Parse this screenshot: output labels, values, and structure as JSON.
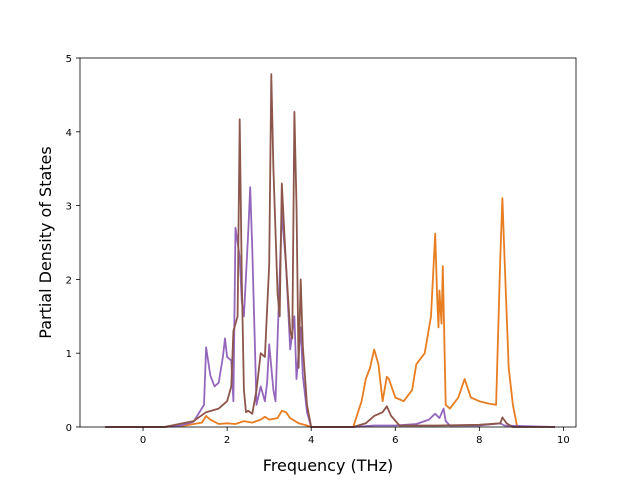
{
  "chart_data": {
    "type": "line",
    "title": "",
    "xlabel": "Frequency (THz)",
    "ylabel": "Partial Density of States",
    "xlim": [
      -1.5,
      10.3
    ],
    "ylim": [
      0,
      5
    ],
    "xticks": [
      0,
      2,
      4,
      6,
      8,
      10
    ],
    "yticks": [
      0,
      1,
      2,
      3,
      4,
      5
    ],
    "grid": false,
    "series": [
      {
        "color": "#e87d21",
        "points": [
          [
            -0.9,
            0
          ],
          [
            0.5,
            0
          ],
          [
            1.0,
            0.02
          ],
          [
            1.4,
            0.06
          ],
          [
            1.5,
            0.15
          ],
          [
            1.6,
            0.1
          ],
          [
            1.8,
            0.04
          ],
          [
            2.0,
            0.05
          ],
          [
            2.2,
            0.04
          ],
          [
            2.4,
            0.08
          ],
          [
            2.6,
            0.06
          ],
          [
            2.8,
            0.1
          ],
          [
            2.9,
            0.14
          ],
          [
            3.0,
            0.1
          ],
          [
            3.2,
            0.12
          ],
          [
            3.3,
            0.22
          ],
          [
            3.4,
            0.2
          ],
          [
            3.5,
            0.12
          ],
          [
            3.7,
            0.05
          ],
          [
            3.9,
            0.02
          ],
          [
            4.0,
            0
          ],
          [
            5.0,
            0
          ],
          [
            5.2,
            0.35
          ],
          [
            5.3,
            0.65
          ],
          [
            5.4,
            0.8
          ],
          [
            5.5,
            1.05
          ],
          [
            5.6,
            0.85
          ],
          [
            5.7,
            0.35
          ],
          [
            5.8,
            0.68
          ],
          [
            5.85,
            0.65
          ],
          [
            6.0,
            0.4
          ],
          [
            6.2,
            0.35
          ],
          [
            6.4,
            0.5
          ],
          [
            6.5,
            0.85
          ],
          [
            6.7,
            1.0
          ],
          [
            6.85,
            1.5
          ],
          [
            6.95,
            2.62
          ],
          [
            7.0,
            1.7
          ],
          [
            7.03,
            1.35
          ],
          [
            7.05,
            1.85
          ],
          [
            7.1,
            1.4
          ],
          [
            7.13,
            2.18
          ],
          [
            7.2,
            0.3
          ],
          [
            7.3,
            0.25
          ],
          [
            7.5,
            0.4
          ],
          [
            7.65,
            0.65
          ],
          [
            7.8,
            0.4
          ],
          [
            8.0,
            0.35
          ],
          [
            8.2,
            0.32
          ],
          [
            8.4,
            0.3
          ],
          [
            8.5,
            2.3
          ],
          [
            8.55,
            3.1
          ],
          [
            8.6,
            2.3
          ],
          [
            8.7,
            0.8
          ],
          [
            8.8,
            0.3
          ],
          [
            8.9,
            0
          ]
        ]
      },
      {
        "color": "#9467bd",
        "points": [
          [
            -0.9,
            0
          ],
          [
            0.5,
            0
          ],
          [
            0.9,
            0.02
          ],
          [
            1.2,
            0.07
          ],
          [
            1.45,
            0.3
          ],
          [
            1.5,
            1.08
          ],
          [
            1.6,
            0.7
          ],
          [
            1.7,
            0.55
          ],
          [
            1.8,
            0.6
          ],
          [
            1.9,
            0.95
          ],
          [
            1.95,
            1.2
          ],
          [
            2.0,
            0.95
          ],
          [
            2.1,
            0.9
          ],
          [
            2.15,
            0.35
          ],
          [
            2.2,
            2.7
          ],
          [
            2.3,
            2.3
          ],
          [
            2.35,
            1.7
          ],
          [
            2.4,
            1.5
          ],
          [
            2.5,
            2.6
          ],
          [
            2.55,
            3.25
          ],
          [
            2.6,
            2.4
          ],
          [
            2.7,
            0.3
          ],
          [
            2.8,
            0.55
          ],
          [
            2.9,
            0.35
          ],
          [
            2.95,
            0.6
          ],
          [
            3.0,
            1.12
          ],
          [
            3.1,
            0.5
          ],
          [
            3.15,
            0.35
          ],
          [
            3.3,
            2.9
          ],
          [
            3.4,
            2.2
          ],
          [
            3.5,
            1.05
          ],
          [
            3.6,
            1.5
          ],
          [
            3.65,
            0.65
          ],
          [
            3.75,
            1.35
          ],
          [
            3.8,
            0.7
          ],
          [
            3.9,
            0.2
          ],
          [
            4.0,
            0
          ],
          [
            5.0,
            0
          ],
          [
            5.5,
            0.02
          ],
          [
            6.0,
            0.02
          ],
          [
            6.5,
            0.04
          ],
          [
            6.8,
            0.1
          ],
          [
            6.95,
            0.18
          ],
          [
            7.05,
            0.12
          ],
          [
            7.15,
            0.25
          ],
          [
            7.2,
            0.08
          ],
          [
            7.3,
            0.02
          ],
          [
            8.0,
            0.02
          ],
          [
            8.5,
            0.05
          ],
          [
            8.6,
            0.02
          ],
          [
            9.8,
            0
          ]
        ]
      },
      {
        "color": "#8c564b",
        "points": [
          [
            -0.9,
            0
          ],
          [
            0.5,
            0
          ],
          [
            1.2,
            0.08
          ],
          [
            1.5,
            0.2
          ],
          [
            1.8,
            0.25
          ],
          [
            2.0,
            0.35
          ],
          [
            2.1,
            0.55
          ],
          [
            2.15,
            1.3
          ],
          [
            2.25,
            1.5
          ],
          [
            2.3,
            4.17
          ],
          [
            2.35,
            2.0
          ],
          [
            2.4,
            0.5
          ],
          [
            2.45,
            0.2
          ],
          [
            2.5,
            0.22
          ],
          [
            2.6,
            0.18
          ],
          [
            2.7,
            0.5
          ],
          [
            2.8,
            1.0
          ],
          [
            2.9,
            0.95
          ],
          [
            3.0,
            2.2
          ],
          [
            3.05,
            4.78
          ],
          [
            3.1,
            3.5
          ],
          [
            3.2,
            1.8
          ],
          [
            3.25,
            1.5
          ],
          [
            3.3,
            3.3
          ],
          [
            3.4,
            2.2
          ],
          [
            3.5,
            1.3
          ],
          [
            3.55,
            1.2
          ],
          [
            3.6,
            4.27
          ],
          [
            3.65,
            3.0
          ],
          [
            3.7,
            0.8
          ],
          [
            3.75,
            2.0
          ],
          [
            3.8,
            1.1
          ],
          [
            3.9,
            0.3
          ],
          [
            4.0,
            0
          ],
          [
            5.0,
            0
          ],
          [
            5.3,
            0.05
          ],
          [
            5.5,
            0.15
          ],
          [
            5.7,
            0.2
          ],
          [
            5.8,
            0.28
          ],
          [
            5.9,
            0.15
          ],
          [
            6.1,
            0.02
          ],
          [
            7.0,
            0.02
          ],
          [
            8.0,
            0.03
          ],
          [
            8.5,
            0.05
          ],
          [
            8.55,
            0.13
          ],
          [
            8.65,
            0.05
          ],
          [
            8.8,
            0
          ],
          [
            9.8,
            0
          ]
        ]
      }
    ]
  }
}
